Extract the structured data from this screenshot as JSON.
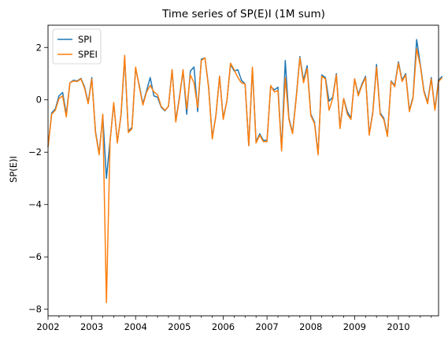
{
  "chart_data": {
    "type": "line",
    "title": "Time series of SP(E)I (1M sum)",
    "xlabel": "",
    "ylabel": "SP(E)I",
    "xlim": [
      "2002-01",
      "2010-12"
    ],
    "ylim": [
      -8.25,
      2.85
    ],
    "grid": false,
    "legend": "top-left",
    "x_ticks": [
      "2002",
      "2003",
      "2004",
      "2005",
      "2006",
      "2007",
      "2008",
      "2009",
      "2010"
    ],
    "y_ticks": [
      -8,
      -6,
      -4,
      -2,
      0,
      2
    ],
    "start_month": "2002-01",
    "series": [
      {
        "name": "SPI",
        "color": "#1f77b4",
        "values": [
          -1.8,
          -0.5,
          -0.35,
          0.15,
          0.28,
          -0.55,
          0.65,
          0.75,
          0.72,
          0.82,
          0.5,
          -0.1,
          0.85,
          -1.2,
          -2.05,
          -0.6,
          -3.0,
          -1.55,
          -0.15,
          -1.6,
          -0.6,
          1.6,
          -1.2,
          -1.05,
          1.2,
          0.55,
          -0.15,
          0.35,
          0.85,
          0.15,
          0.1,
          -0.28,
          -0.42,
          -0.25,
          1.15,
          -0.8,
          0.1,
          1.1,
          -0.55,
          1.1,
          1.25,
          -0.45,
          1.55,
          1.6,
          0.5,
          -1.45,
          -0.6,
          0.9,
          -0.7,
          -0.05,
          1.35,
          1.1,
          1.15,
          0.75,
          0.6,
          -1.75,
          1.2,
          -1.6,
          -1.3,
          -1.55,
          -1.55,
          0.5,
          0.38,
          0.48,
          -1.9,
          1.5,
          -0.7,
          -1.25,
          0.1,
          1.65,
          0.75,
          1.3,
          -0.55,
          -0.85,
          -2.05,
          0.95,
          0.85,
          -0.05,
          0.1,
          1.0,
          -1.05,
          0.05,
          -0.45,
          -0.7,
          0.8,
          0.2,
          0.6,
          0.9,
          -1.3,
          -0.45,
          1.35,
          -0.5,
          -0.7,
          -1.35,
          0.72,
          0.55,
          1.45,
          0.75,
          1.0,
          -0.4,
          0.1,
          2.3,
          1.35,
          0.35,
          -0.1,
          0.85,
          -0.35,
          0.75,
          0.9
        ]
      },
      {
        "name": "SPEI",
        "color": "#ff7f0e",
        "values": [
          -1.8,
          -0.55,
          -0.4,
          0.05,
          0.15,
          -0.65,
          0.65,
          0.72,
          0.7,
          0.8,
          0.45,
          -0.15,
          0.8,
          -1.25,
          -2.1,
          -0.55,
          -7.75,
          -1.6,
          -0.1,
          -1.65,
          -0.55,
          1.7,
          -1.25,
          -1.1,
          1.25,
          0.5,
          -0.2,
          0.3,
          0.55,
          0.3,
          0.2,
          -0.25,
          -0.4,
          -0.25,
          1.15,
          -0.85,
          0.05,
          1.15,
          -0.35,
          0.95,
          0.65,
          -0.3,
          1.5,
          1.6,
          0.45,
          -1.5,
          -0.6,
          0.9,
          -0.75,
          -0.05,
          1.4,
          1.15,
          0.85,
          0.65,
          0.6,
          -1.75,
          1.25,
          -1.65,
          -1.35,
          -1.6,
          -1.6,
          0.55,
          0.3,
          0.35,
          -1.95,
          0.85,
          -0.75,
          -1.3,
          0.05,
          1.6,
          0.65,
          1.2,
          -0.6,
          -0.9,
          -2.1,
          0.9,
          0.8,
          -0.4,
          0.05,
          0.95,
          -1.1,
          0.05,
          -0.55,
          -0.75,
          0.8,
          0.15,
          0.55,
          0.85,
          -1.35,
          -0.5,
          1.25,
          -0.55,
          -0.75,
          -1.4,
          0.7,
          0.5,
          1.4,
          0.7,
          0.95,
          -0.45,
          0.05,
          1.95,
          1.3,
          0.3,
          -0.15,
          0.8,
          -0.4,
          0.7,
          0.85
        ]
      }
    ]
  }
}
